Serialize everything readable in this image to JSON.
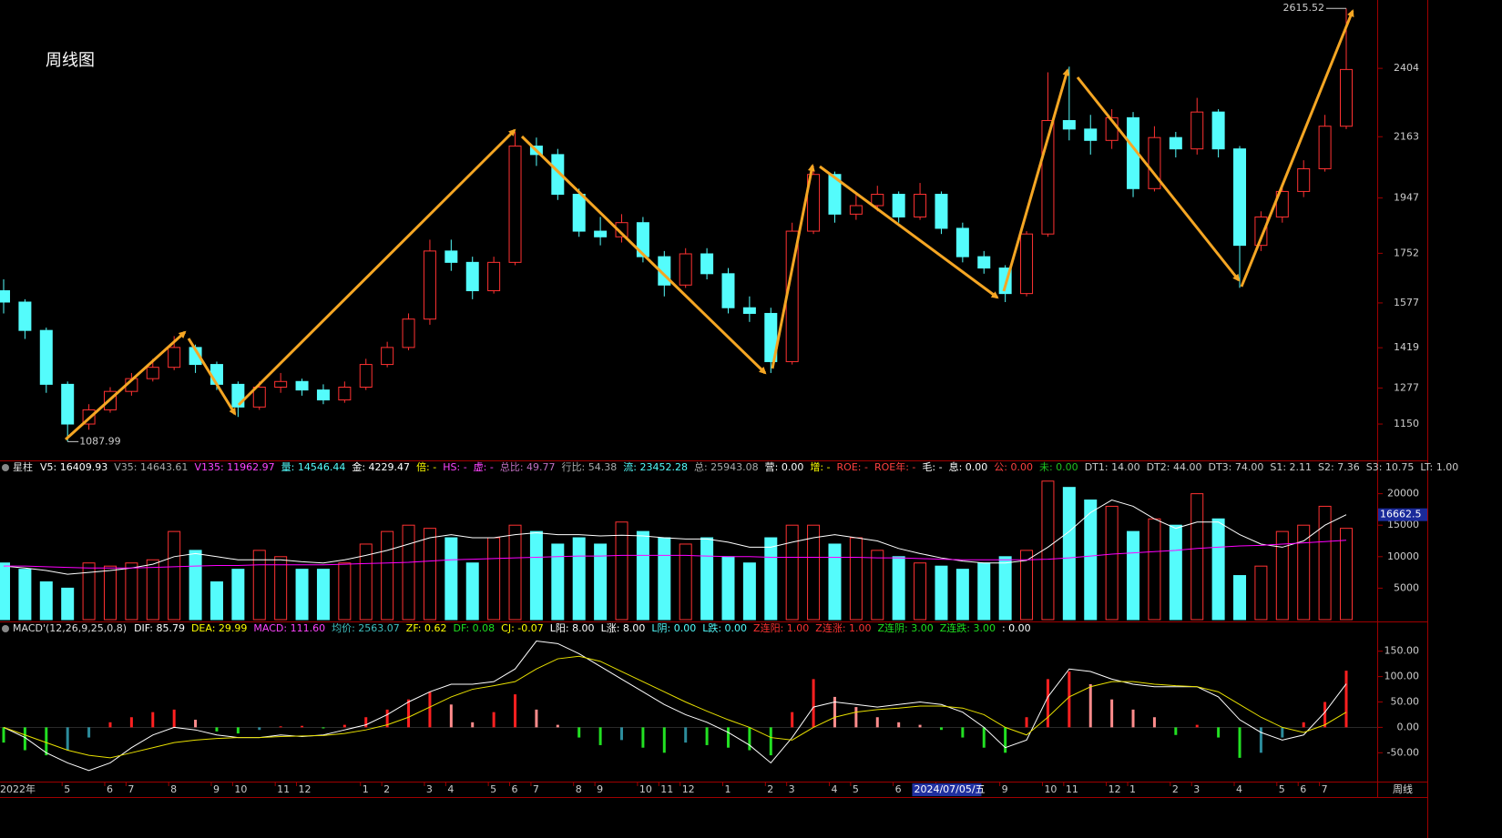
{
  "chart_data": [
    {
      "type": "candlestick",
      "title": "周线图",
      "corner_label": "周线",
      "categories": [
        "2022年",
        null,
        null,
        "5",
        null,
        "6",
        "7",
        null,
        "8",
        null,
        "9",
        "10",
        null,
        "11",
        "12",
        null,
        null,
        "1",
        "2",
        null,
        "3",
        "4",
        null,
        "5",
        "6",
        "7",
        null,
        "8",
        "9",
        null,
        "10",
        "11",
        "12",
        null,
        "1",
        null,
        "2",
        "3",
        null,
        "4",
        "5",
        null,
        "6",
        null,
        "2024/07/05/五",
        null,
        null,
        "9",
        null,
        "10",
        "11",
        null,
        "12",
        "1",
        null,
        "2",
        "3",
        null,
        "4",
        null,
        "5",
        "6",
        "7",
        null
      ],
      "open": [
        1620,
        1580,
        1480,
        1290,
        1150,
        1200,
        1265,
        1310,
        1350,
        1420,
        1360,
        1290,
        1210,
        1280,
        1300,
        1270,
        1235,
        1280,
        1360,
        1420,
        1520,
        1760,
        1720,
        1620,
        1720,
        2130,
        2100,
        1960,
        1830,
        1810,
        1860,
        1740,
        1640,
        1750,
        1680,
        1560,
        1540,
        1370,
        1830,
        2030,
        1890,
        1920,
        1960,
        1880,
        1960,
        1840,
        1740,
        1700,
        1610,
        1820,
        2220,
        2190,
        2150,
        2230,
        1980,
        2160,
        2120,
        2250,
        2120,
        1780,
        1880,
        1970,
        2050,
        2200
      ],
      "close": [
        1580,
        1480,
        1290,
        1150,
        1200,
        1265,
        1310,
        1350,
        1420,
        1360,
        1290,
        1210,
        1280,
        1300,
        1270,
        1235,
        1280,
        1360,
        1420,
        1520,
        1760,
        1720,
        1620,
        1720,
        2130,
        2100,
        1960,
        1830,
        1810,
        1860,
        1740,
        1640,
        1750,
        1680,
        1560,
        1540,
        1370,
        1830,
        2030,
        1890,
        1920,
        1960,
        1880,
        1960,
        1840,
        1740,
        1700,
        1610,
        1820,
        2220,
        2190,
        2150,
        2230,
        1980,
        2160,
        2120,
        2250,
        2120,
        1780,
        1880,
        1970,
        2050,
        2200,
        2400
      ],
      "high": [
        1660,
        1590,
        1490,
        1300,
        1220,
        1280,
        1330,
        1380,
        1460,
        1430,
        1370,
        1300,
        1300,
        1330,
        1310,
        1290,
        1300,
        1380,
        1440,
        1540,
        1800,
        1800,
        1740,
        1740,
        2180,
        2160,
        2120,
        1980,
        1880,
        1890,
        1880,
        1760,
        1770,
        1770,
        1700,
        1600,
        1560,
        1860,
        2060,
        2040,
        1960,
        1990,
        1970,
        2000,
        1970,
        1860,
        1760,
        1710,
        1830,
        2390,
        2410,
        2240,
        2260,
        2250,
        2200,
        2180,
        2300,
        2260,
        2130,
        1900,
        1990,
        2080,
        2240,
        2615.52
      ],
      "low": [
        1540,
        1450,
        1260,
        1087.99,
        1130,
        1190,
        1250,
        1300,
        1340,
        1330,
        1270,
        1175,
        1200,
        1260,
        1250,
        1220,
        1225,
        1270,
        1350,
        1410,
        1500,
        1690,
        1590,
        1610,
        1710,
        2060,
        1940,
        1810,
        1780,
        1790,
        1720,
        1600,
        1630,
        1660,
        1540,
        1510,
        1330,
        1360,
        1820,
        1860,
        1870,
        1900,
        1860,
        1870,
        1820,
        1720,
        1680,
        1580,
        1600,
        1810,
        2150,
        2100,
        2120,
        1950,
        1970,
        2090,
        2100,
        2090,
        1630,
        1760,
        1860,
        1950,
        2040,
        2190
      ],
      "up_color": "#ff3232",
      "down_color": "#54fcfc",
      "ylim": [
        1025,
        2645
      ],
      "yticks": [
        2404,
        2163,
        1947,
        1752,
        1577,
        1419,
        1277,
        1150
      ]
    },
    {
      "type": "bar",
      "header": {
        "name": "星柱",
        "items": [
          {
            "text": "V5: 16409.93",
            "color": "#ffffff"
          },
          {
            "text": "V35: 14643.61",
            "color": "#aaaaaa"
          },
          {
            "text": "V135: 11962.97",
            "color": "#ff44ff"
          },
          {
            "text": "量: 14546.44",
            "color": "#54fcfc"
          },
          {
            "text": "金: 4229.47",
            "color": "#ffffff"
          },
          {
            "text": "倍: -",
            "color": "#ffff00"
          },
          {
            "text": "HS: -",
            "color": "#ff44ff"
          },
          {
            "text": "虚: -",
            "color": "#ff44ff"
          },
          {
            "text": "总比: 49.77",
            "color": "#c070c0"
          },
          {
            "text": "行比: 54.38",
            "color": "#aaaaaa"
          },
          {
            "text": "流: 23452.28",
            "color": "#54fcfc"
          },
          {
            "text": "总: 25943.08",
            "color": "#aaaaaa"
          },
          {
            "text": "营: 0.00",
            "color": "#ffffff"
          },
          {
            "text": "增: -",
            "color": "#ffff00"
          },
          {
            "text": "ROE: -",
            "color": "#ff4040"
          },
          {
            "text": "ROE年: -",
            "color": "#ff4040"
          },
          {
            "text": "毛: -",
            "color": "#ffffff"
          },
          {
            "text": "息: 0.00",
            "color": "#ffffff"
          },
          {
            "text": "公: 0.00",
            "color": "#ff4040"
          },
          {
            "text": "未: 0.00",
            "color": "#20c020"
          },
          {
            "text": "DT1: 14.00",
            "color": "#cccccc"
          },
          {
            "text": "DT2: 44.00",
            "color": "#cccccc"
          },
          {
            "text": "DT3: 74.00",
            "color": "#cccccc"
          },
          {
            "text": "S1: 2.11",
            "color": "#cccccc"
          },
          {
            "text": "S2: 7.36",
            "color": "#cccccc"
          },
          {
            "text": "S3: 10.75",
            "color": "#cccccc"
          },
          {
            "text": "LT: 1.00",
            "color": "#cccccc"
          }
        ]
      },
      "values": [
        9000,
        8000,
        6000,
        5000,
        9000,
        8500,
        9000,
        9500,
        14000,
        11000,
        6000,
        8000,
        11000,
        10000,
        8000,
        8000,
        9000,
        12000,
        14000,
        15000,
        14500,
        13000,
        9000,
        13000,
        15000,
        14000,
        12000,
        13000,
        12000,
        15500,
        14000,
        13000,
        12000,
        13000,
        10000,
        9000,
        13000,
        15000,
        15000,
        12000,
        13000,
        11000,
        10000,
        9000,
        8500,
        8000,
        9000,
        10000,
        11000,
        22000,
        21000,
        19000,
        18000,
        14000,
        16000,
        15000,
        20000,
        16000,
        7000,
        8500,
        14000,
        15000,
        18000,
        14500
      ],
      "series": [
        {
          "color": "#ffffff",
          "values": [
            8500,
            8200,
            7800,
            7200,
            7500,
            7800,
            8200,
            8800,
            10000,
            10500,
            10000,
            9500,
            9500,
            9500,
            9200,
            9000,
            9500,
            10200,
            11000,
            12000,
            13000,
            13500,
            13000,
            13000,
            13500,
            13800,
            13500,
            13500,
            13300,
            13400,
            13300,
            13000,
            12800,
            12800,
            12300,
            11500,
            11500,
            12300,
            13000,
            13500,
            13000,
            12500,
            11300,
            10500,
            9800,
            9300,
            9000,
            9000,
            9400,
            11500,
            14000,
            17000,
            19000,
            18000,
            16000,
            14500,
            15500,
            15500,
            13500,
            12000,
            11500,
            12500,
            15000,
            16662.5
          ]
        },
        {
          "color": "#ff00ff",
          "values": [
            8500,
            8500,
            8400,
            8300,
            8200,
            8200,
            8200,
            8300,
            8400,
            8500,
            8600,
            8600,
            8700,
            8700,
            8700,
            8700,
            8800,
            8900,
            9000,
            9100,
            9300,
            9500,
            9600,
            9700,
            9800,
            9900,
            10000,
            10100,
            10100,
            10200,
            10200,
            10200,
            10200,
            10100,
            10000,
            10000,
            9900,
            9900,
            9900,
            9900,
            9900,
            9800,
            9800,
            9700,
            9600,
            9500,
            9500,
            9500,
            9500,
            9600,
            9800,
            10100,
            10400,
            10600,
            10800,
            11000,
            11300,
            11500,
            11700,
            11800,
            12000,
            12200,
            12400,
            12600
          ]
        }
      ],
      "ylim": [
        0,
        25000
      ],
      "yticks": [
        20000,
        15000,
        10000,
        5000
      ]
    },
    {
      "type": "macd",
      "header": {
        "name": "MACD'(12,26,9,25,0,8)",
        "items": [
          {
            "text": "DIF: 85.79",
            "color": "#ffffff"
          },
          {
            "text": "DEA: 29.99",
            "color": "#ffff00"
          },
          {
            "text": "MACD: 111.60",
            "color": "#ff44ff"
          },
          {
            "text": "均价: 2563.07",
            "color": "#40c0c0"
          },
          {
            "text": "ZF: 0.62",
            "color": "#ffff00"
          },
          {
            "text": "DF: 0.08",
            "color": "#20e020"
          },
          {
            "text": "CJ: -0.07",
            "color": "#ffff00"
          },
          {
            "text": "L阳: 8.00",
            "color": "#ffffff"
          },
          {
            "text": "L涨: 8.00",
            "color": "#ffffff"
          },
          {
            "text": "L阴: 0.00",
            "color": "#54fcfc"
          },
          {
            "text": "L跌: 0.00",
            "color": "#54fcfc"
          },
          {
            "text": "Z连阳: 1.00",
            "color": "#ff3232"
          },
          {
            "text": "Z连涨: 1.00",
            "color": "#ff3232"
          },
          {
            "text": "Z连阴: 3.00",
            "color": "#20e020"
          },
          {
            "text": "Z连跌: 3.00",
            "color": "#20e020"
          },
          {
            "text": ": 0.00",
            "color": "#ffffff"
          }
        ]
      },
      "values": [
        -30,
        -45,
        -55,
        -45,
        -20,
        10,
        20,
        30,
        35,
        15,
        -8,
        -12,
        -5,
        2,
        3,
        -2,
        5,
        20,
        35,
        55,
        70,
        45,
        10,
        30,
        65,
        35,
        5,
        -20,
        -35,
        -25,
        -40,
        -50,
        -30,
        -35,
        -40,
        -45,
        -55,
        30,
        95,
        60,
        40,
        20,
        10,
        5,
        -5,
        -20,
        -40,
        -50,
        20,
        95,
        110,
        85,
        55,
        35,
        20,
        -15,
        5,
        -20,
        -60,
        -50,
        -20,
        10,
        50,
        111.6
      ],
      "bar_colors": [
        "#ff2020",
        "#ff8c8c",
        "#22e022",
        "#2c8c9c"
      ],
      "series": [
        {
          "color": "#ffffff",
          "values": [
            0,
            -20,
            -50,
            -70,
            -85,
            -70,
            -40,
            -15,
            0,
            -5,
            -15,
            -20,
            -20,
            -15,
            -18,
            -15,
            -5,
            5,
            25,
            50,
            70,
            85,
            85,
            90,
            115,
            170,
            165,
            145,
            120,
            95,
            70,
            45,
            25,
            10,
            -10,
            -35,
            -70,
            -20,
            40,
            50,
            45,
            40,
            45,
            50,
            45,
            30,
            0,
            -40,
            -25,
            60,
            115,
            110,
            95,
            85,
            80,
            80,
            80,
            60,
            15,
            -10,
            -25,
            -15,
            30,
            85.79
          ]
        },
        {
          "color": "#e8e000",
          "values": [
            0,
            -15,
            -30,
            -45,
            -55,
            -60,
            -50,
            -40,
            -30,
            -25,
            -22,
            -20,
            -20,
            -18,
            -17,
            -16,
            -12,
            -5,
            5,
            20,
            40,
            60,
            75,
            82,
            90,
            115,
            135,
            140,
            130,
            110,
            90,
            70,
            50,
            32,
            15,
            0,
            -20,
            -25,
            0,
            20,
            30,
            35,
            38,
            42,
            42,
            38,
            25,
            0,
            -15,
            20,
            60,
            80,
            90,
            90,
            85,
            82,
            80,
            70,
            45,
            20,
            0,
            -10,
            5,
            29.99
          ]
        }
      ],
      "ylim": [
        -105,
        205
      ],
      "yticks": [
        {
          "value": 150,
          "label": "150.00"
        },
        {
          "value": 100,
          "label": "100.00"
        },
        {
          "value": 50,
          "label": "50.00"
        },
        {
          "value": 0,
          "label": "0.00"
        },
        {
          "value": -50,
          "label": "-50.00"
        }
      ]
    }
  ]
}
